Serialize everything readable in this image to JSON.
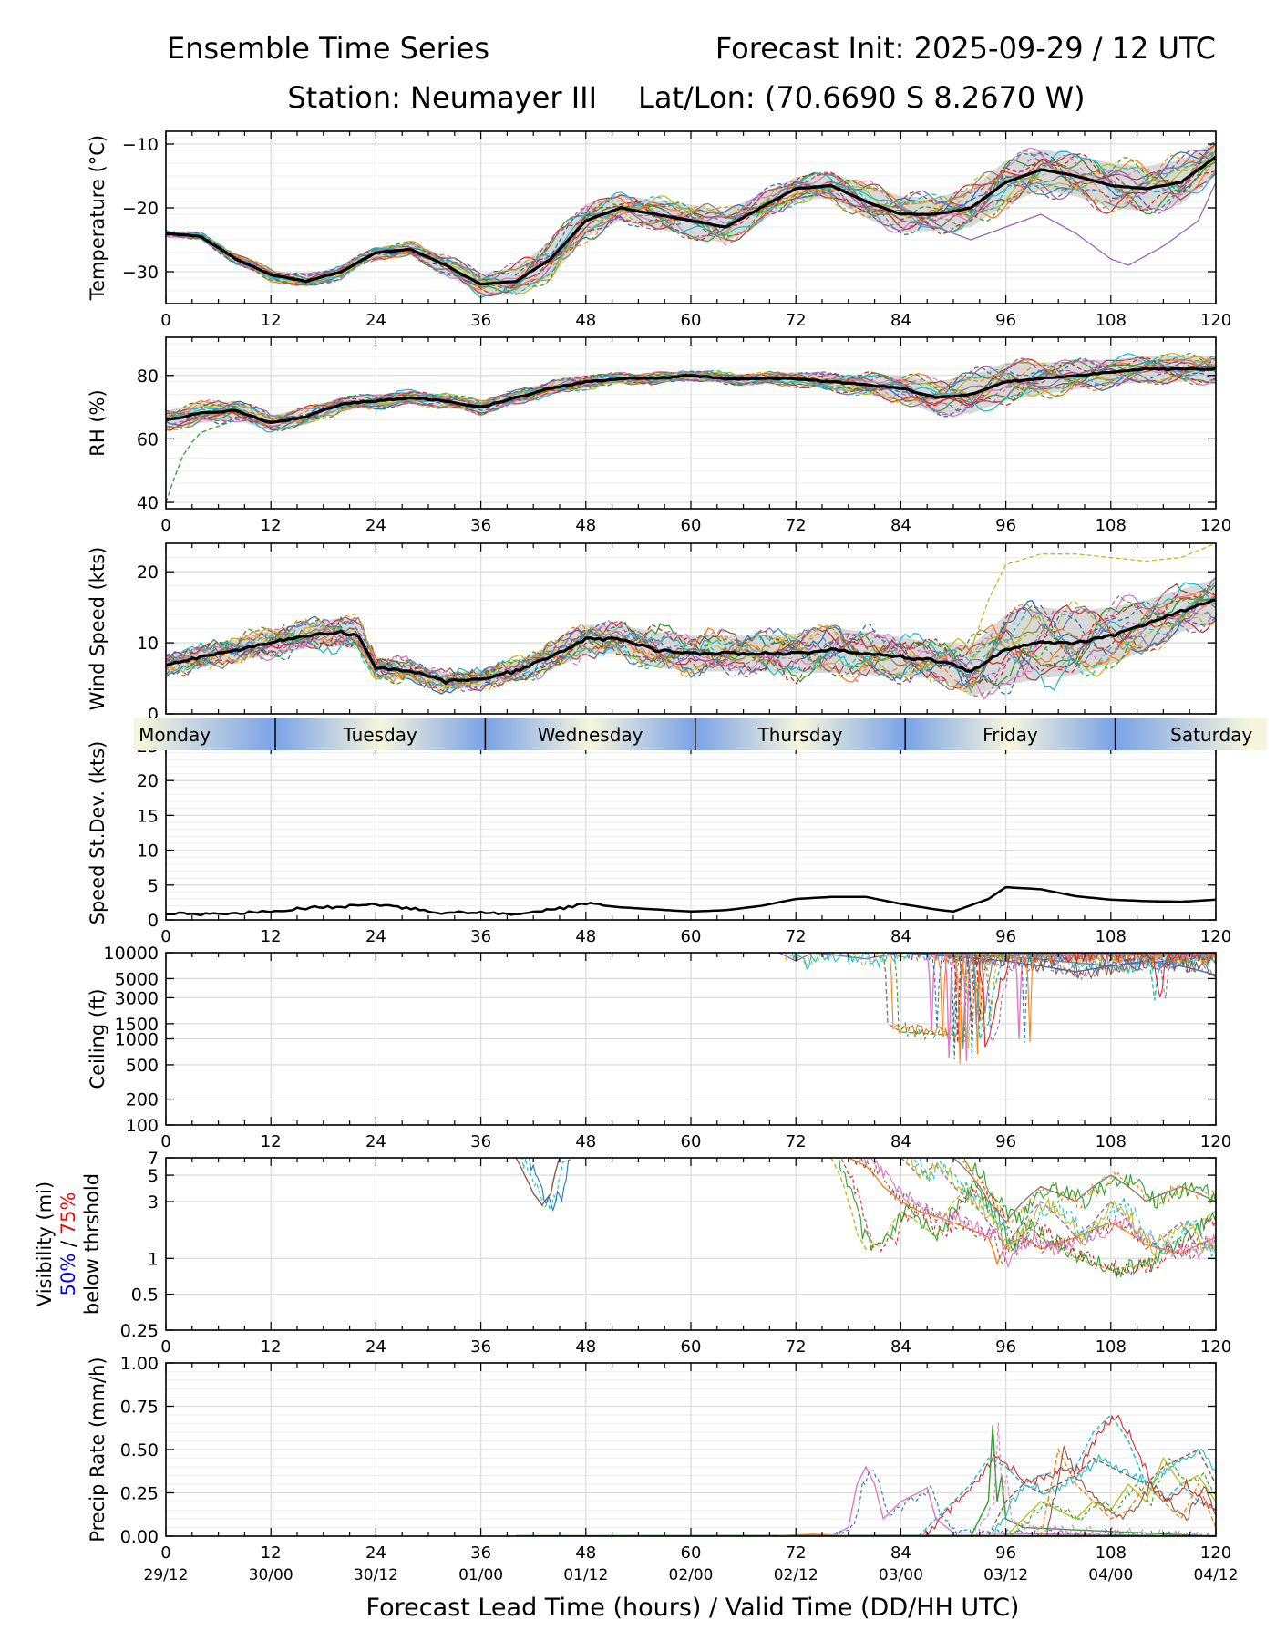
{
  "header": {
    "title_left": "Ensemble Time Series",
    "title_right": "Forecast Init: 2025-09-29 / 12 UTC",
    "station": "Station: Neumayer III",
    "latlon": "Lat/Lon: (70.6690 S 8.2670 W)"
  },
  "x_axis": {
    "label": "Forecast Lead Time (hours) / Valid Time (DD/HH UTC)",
    "range": [
      0,
      120
    ],
    "hour_ticks": [
      "0",
      "12",
      "24",
      "36",
      "48",
      "60",
      "72",
      "84",
      "96",
      "108",
      "120"
    ],
    "valid_ticks": [
      "29/12",
      "30/00",
      "30/12",
      "01/00",
      "01/12",
      "02/00",
      "02/12",
      "03/00",
      "03/12",
      "04/00",
      "04/12"
    ]
  },
  "day_strip": {
    "days": [
      "Monday",
      "Tuesday",
      "Wednesday",
      "Thursday",
      "Friday",
      "Saturday"
    ],
    "dividers_hours": [
      12.5,
      36.5,
      60.5,
      84.5,
      108.5
    ],
    "light_color": "#f6f6dc",
    "dark_color": "#7aa2e6"
  },
  "colors": {
    "mean": "#000000",
    "spread": "#c8c8c8",
    "members": [
      "#1f77b4",
      "#ff7f0e",
      "#2ca02c",
      "#d62728",
      "#9467bd",
      "#8c564b",
      "#e377c2",
      "#7f7f7f",
      "#bcbd22",
      "#17becf"
    ],
    "vis_50": "#0000ff",
    "vis_75": "#ff0000"
  },
  "chart_data": [
    {
      "type": "line",
      "name": "temperature",
      "ylabel": "Temperature (°C)",
      "ylim": [
        -35,
        -8
      ],
      "yticks": [
        -30,
        -20,
        -10
      ],
      "ytick_labels": [
        "−30",
        "−20",
        "−10"
      ],
      "x": [
        0,
        4,
        8,
        12,
        16,
        20,
        24,
        28,
        32,
        36,
        40,
        44,
        48,
        52,
        56,
        60,
        64,
        68,
        72,
        76,
        80,
        84,
        88,
        92,
        96,
        100,
        104,
        108,
        112,
        116,
        120
      ],
      "mean": [
        -24,
        -24.5,
        -28,
        -30.5,
        -31.5,
        -30,
        -27,
        -26.5,
        -29,
        -32,
        -31.5,
        -28,
        -22,
        -20,
        -21,
        -22,
        -23,
        -20,
        -17,
        -16.5,
        -19,
        -21,
        -21,
        -20,
        -16,
        -14,
        -15,
        -16.5,
        -17,
        -16,
        -12
      ],
      "spread": [
        0.4,
        0.5,
        0.7,
        0.8,
        0.9,
        0.9,
        0.8,
        1,
        1.4,
        1.6,
        2.2,
        2.8,
        2.6,
        2,
        2.2,
        2.5,
        2.5,
        2.2,
        1.8,
        2,
        2.6,
        2.8,
        2.6,
        3,
        3.4,
        3.2,
        3.2,
        3.5,
        3.5,
        3.5,
        2.5
      ],
      "outlier_member": {
        "x": [
          84,
          88,
          92,
          96,
          100,
          104,
          108,
          110,
          114,
          118,
          120
        ],
        "values": [
          -22,
          -23,
          -25,
          -23,
          -21,
          -24,
          -28,
          -29,
          -26,
          -22,
          -16
        ]
      }
    },
    {
      "type": "line",
      "name": "relative_humidity",
      "ylabel": "RH (%)",
      "ylim": [
        38,
        92
      ],
      "yticks": [
        40,
        60,
        80
      ],
      "ytick_labels": [
        "40",
        "60",
        "80"
      ],
      "x": [
        0,
        4,
        8,
        12,
        16,
        20,
        24,
        28,
        32,
        36,
        40,
        44,
        48,
        52,
        56,
        60,
        64,
        68,
        72,
        76,
        80,
        84,
        88,
        92,
        96,
        100,
        104,
        108,
        112,
        116,
        120
      ],
      "mean": [
        66,
        68,
        69,
        65,
        67,
        71,
        72,
        73,
        72,
        70,
        73,
        76,
        78,
        79,
        79,
        80,
        79,
        79,
        79,
        78,
        77,
        76,
        73,
        74,
        78,
        79,
        80,
        81,
        82,
        82,
        82
      ],
      "spread": [
        3,
        3,
        3,
        2.5,
        2.5,
        2,
        2,
        2,
        2,
        2,
        2,
        2,
        2,
        1.5,
        1.5,
        1.5,
        1.5,
        1.5,
        2,
        2.5,
        3,
        4,
        5,
        6,
        6,
        5,
        4.5,
        4,
        4,
        4,
        4
      ],
      "outlier_member": {
        "x": [
          0,
          1,
          2,
          3,
          4,
          6,
          8
        ],
        "values": [
          40,
          48,
          55,
          59,
          62,
          64,
          66
        ]
      }
    },
    {
      "type": "line",
      "name": "wind_speed",
      "ylabel": "Wind Speed (kts)",
      "ylim": [
        0,
        24
      ],
      "yticks": [
        0,
        10,
        20
      ],
      "ytick_labels": [
        "0",
        "10",
        "20"
      ],
      "x": [
        0,
        4,
        8,
        12,
        16,
        20,
        22,
        24,
        28,
        32,
        36,
        40,
        44,
        48,
        52,
        56,
        60,
        64,
        68,
        72,
        76,
        80,
        84,
        88,
        90,
        92,
        96,
        100,
        104,
        108,
        112,
        116,
        120
      ],
      "mean": [
        7,
        8,
        9,
        10,
        11,
        11.5,
        11,
        6.5,
        6,
        4.5,
        5,
        6,
        8,
        10.5,
        10.5,
        9,
        8.5,
        8.5,
        8.5,
        8.5,
        9,
        8.5,
        8,
        7.5,
        7,
        6,
        9,
        10,
        10,
        11,
        12.5,
        14.5,
        16
      ],
      "spread": [
        1.2,
        1.5,
        1.5,
        1.8,
        1.8,
        2,
        2,
        1.5,
        1.2,
        1.2,
        1.2,
        1.3,
        1.8,
        2,
        2,
        2.5,
        2.5,
        2.5,
        2.5,
        2.8,
        3.2,
        3,
        2.8,
        2.5,
        3,
        3.5,
        5,
        5,
        4.5,
        4,
        3.5,
        3,
        3
      ],
      "outlier_member": {
        "x": [
          92,
          94,
          96,
          100,
          104,
          108,
          112,
          116,
          120
        ],
        "values": [
          9,
          16,
          21,
          22.5,
          22.5,
          22,
          21.5,
          22,
          24
        ]
      }
    },
    {
      "type": "line",
      "name": "speed_std_dev",
      "ylabel": "Speed St.Dev. (kts)",
      "ylim": [
        0,
        25
      ],
      "yticks": [
        0,
        5,
        10,
        15,
        20,
        25
      ],
      "ytick_labels": [
        "0",
        "5",
        "10",
        "15",
        "20",
        "25"
      ],
      "x": [
        0,
        4,
        8,
        12,
        16,
        20,
        24,
        28,
        32,
        36,
        40,
        44,
        48,
        52,
        56,
        60,
        64,
        68,
        72,
        76,
        80,
        84,
        88,
        90,
        94,
        96,
        100,
        104,
        108,
        112,
        116,
        120
      ],
      "values": [
        1,
        0.8,
        1,
        1.3,
        1.7,
        1.9,
        2.2,
        1.6,
        1,
        1.1,
        0.9,
        1.4,
        2.3,
        1.8,
        1.5,
        1.2,
        1.4,
        2,
        3,
        3.3,
        3.3,
        2.3,
        1.5,
        1.2,
        3,
        4.7,
        4.4,
        3.4,
        2.9,
        2.7,
        2.6,
        2.9
      ]
    },
    {
      "type": "line",
      "name": "ceiling",
      "ylabel": "Ceiling (ft)",
      "ylim": [
        100,
        10000
      ],
      "scale": "log",
      "yticks": [
        100,
        200,
        500,
        1000,
        1500,
        3000,
        5000,
        10000
      ],
      "ytick_labels": [
        "100",
        "200",
        "500",
        "1000",
        "1500",
        "3000",
        "5000",
        "10000"
      ],
      "members": [
        {
          "x": [
            70,
            72,
            74,
            80,
            84,
            90,
            96,
            102,
            108,
            114,
            120
          ],
          "values": [
            10000,
            8000,
            10000,
            8500,
            10000,
            9500,
            9000,
            8000,
            7000,
            8000,
            9000
          ]
        },
        {
          "x": [
            82,
            82.5,
            84,
            90,
            90.5,
            94,
            96,
            120
          ],
          "values": [
            10000,
            1500,
            1200,
            1100,
            10000,
            9000,
            10000,
            9500
          ]
        },
        {
          "x": [
            84,
            90,
            96,
            100,
            104,
            108,
            112,
            116,
            120
          ],
          "values": [
            10000,
            9000,
            8000,
            7000,
            6000,
            7000,
            8000,
            7000,
            5500
          ]
        },
        {
          "x": [
            88,
            90,
            90.5,
            91,
            91.5,
            92,
            92.5,
            93,
            94,
            120
          ],
          "values": [
            10000,
            10000,
            900,
            10000,
            10000,
            1600,
            10000,
            1600,
            10000,
            9500
          ]
        },
        {
          "x": [
            86,
            87,
            87.5,
            88,
            89,
            89.5,
            90,
            91,
            91.5,
            92,
            96,
            97,
            97.5,
            98,
            120
          ],
          "values": [
            10000,
            10000,
            1200,
            10000,
            10000,
            600,
            10000,
            10000,
            550,
            10000,
            10000,
            10000,
            1000,
            10000,
            9000
          ]
        },
        {
          "x": [
            92,
            93,
            94,
            95,
            96,
            100,
            112,
            113,
            114,
            120
          ],
          "values": [
            10000,
            1000,
            1500,
            5000,
            10000,
            9000,
            10000,
            2800,
            10000,
            9000
          ]
        }
      ]
    },
    {
      "type": "line",
      "name": "visibility",
      "ylabel": "Visibility (mi)",
      "ylabel_pct_50": "50%",
      "ylabel_pct_sep": " / ",
      "ylabel_pct_75": "75%",
      "ylabel_extra": "below thrshold",
      "ylim": [
        0.25,
        7
      ],
      "scale": "log",
      "yticks": [
        0.25,
        0.5,
        1,
        3,
        5,
        7
      ],
      "ytick_labels": [
        "0.25",
        "0.5",
        "1",
        "3",
        "5",
        "7"
      ],
      "members": [
        {
          "x": [
            40,
            41,
            42,
            43,
            44,
            45
          ],
          "values": [
            7,
            5,
            3.5,
            2.8,
            3.5,
            7
          ]
        },
        {
          "x": [
            76,
            77,
            78,
            79,
            80,
            82,
            84,
            86,
            88,
            90,
            92,
            94,
            96,
            98,
            100,
            104,
            108,
            112,
            116,
            120
          ],
          "values": [
            7,
            5,
            3,
            1.6,
            1.2,
            1.4,
            2.5,
            2,
            1.5,
            3,
            4,
            2.5,
            1.2,
            2,
            1.5,
            1,
            0.8,
            0.9,
            1.5,
            2.5
          ]
        },
        {
          "x": [
            78,
            80,
            82,
            84,
            86,
            90,
            94,
            95,
            96,
            98,
            100,
            104,
            108,
            112,
            116,
            120
          ],
          "values": [
            7,
            6,
            4,
            3,
            2.5,
            2,
            1.5,
            0.9,
            1.3,
            1.5,
            1.2,
            1.5,
            2,
            1.3,
            1.1,
            1.5
          ]
        },
        {
          "x": [
            84,
            86,
            88,
            90,
            92,
            94,
            96,
            98,
            100,
            102,
            104,
            106,
            108,
            110,
            112,
            114,
            116,
            118,
            120
          ],
          "values": [
            7,
            5,
            6,
            4,
            3,
            2,
            1.2,
            2,
            3,
            2.2,
            1.5,
            2,
            3,
            2,
            1.2,
            1.5,
            2,
            1.2,
            1.3
          ]
        },
        {
          "x": [
            90,
            92,
            94,
            96,
            98,
            100,
            104,
            108,
            112,
            116,
            120
          ],
          "values": [
            7,
            5,
            3,
            2,
            3,
            4,
            3,
            5,
            3,
            4,
            3
          ]
        }
      ]
    },
    {
      "type": "line",
      "name": "precip_rate",
      "ylabel": "Precip Rate (mm/h)",
      "ylim": [
        0,
        1
      ],
      "yticks": [
        0,
        0.25,
        0.5,
        0.75,
        1
      ],
      "ytick_labels": [
        "0.00",
        "0.25",
        "0.50",
        "0.75",
        "1.00"
      ],
      "members": [
        {
          "x": [
            76,
            78,
            79,
            80,
            81,
            82,
            84,
            86,
            87,
            88,
            90,
            120
          ],
          "values": [
            0,
            0.05,
            0.3,
            0.4,
            0.3,
            0.1,
            0.2,
            0.25,
            0.28,
            0.1,
            0.02,
            0
          ]
        },
        {
          "x": [
            86,
            90,
            92,
            94,
            96,
            98,
            100,
            104,
            106,
            108,
            110,
            112,
            114,
            116,
            118,
            120
          ],
          "values": [
            0,
            0.2,
            0.3,
            0.45,
            0.4,
            0.3,
            0.35,
            0.4,
            0.6,
            0.7,
            0.55,
            0.3,
            0.2,
            0.3,
            0.2,
            0.15
          ]
        },
        {
          "x": [
            92,
            94,
            94.5,
            95,
            95.5,
            96,
            98,
            120
          ],
          "values": [
            0,
            0.2,
            0.64,
            0.2,
            0.35,
            0.1,
            0.05,
            0
          ]
        },
        {
          "x": [
            94,
            96,
            98,
            100,
            102,
            104,
            106,
            108,
            110,
            112,
            114,
            116,
            118,
            120
          ],
          "values": [
            0,
            0.2,
            0.3,
            0.25,
            0.3,
            0.35,
            0.45,
            0.4,
            0.35,
            0.3,
            0.4,
            0.45,
            0.5,
            0.3
          ]
        },
        {
          "x": [
            96,
            98,
            100,
            102,
            104,
            106,
            108,
            110,
            112,
            114,
            116,
            118,
            120
          ],
          "values": [
            0,
            0.1,
            0.2,
            0.15,
            0.1,
            0.2,
            0.15,
            0.3,
            0.2,
            0.45,
            0.3,
            0.35,
            0.2
          ]
        },
        {
          "x": [
            100,
            102,
            104,
            106,
            108,
            110,
            112,
            114,
            116,
            118,
            120
          ],
          "values": [
            0,
            0.5,
            0.3,
            0.2,
            0.1,
            0.15,
            0.3,
            0.2,
            0.1,
            0.3,
            0.05
          ]
        }
      ]
    }
  ]
}
